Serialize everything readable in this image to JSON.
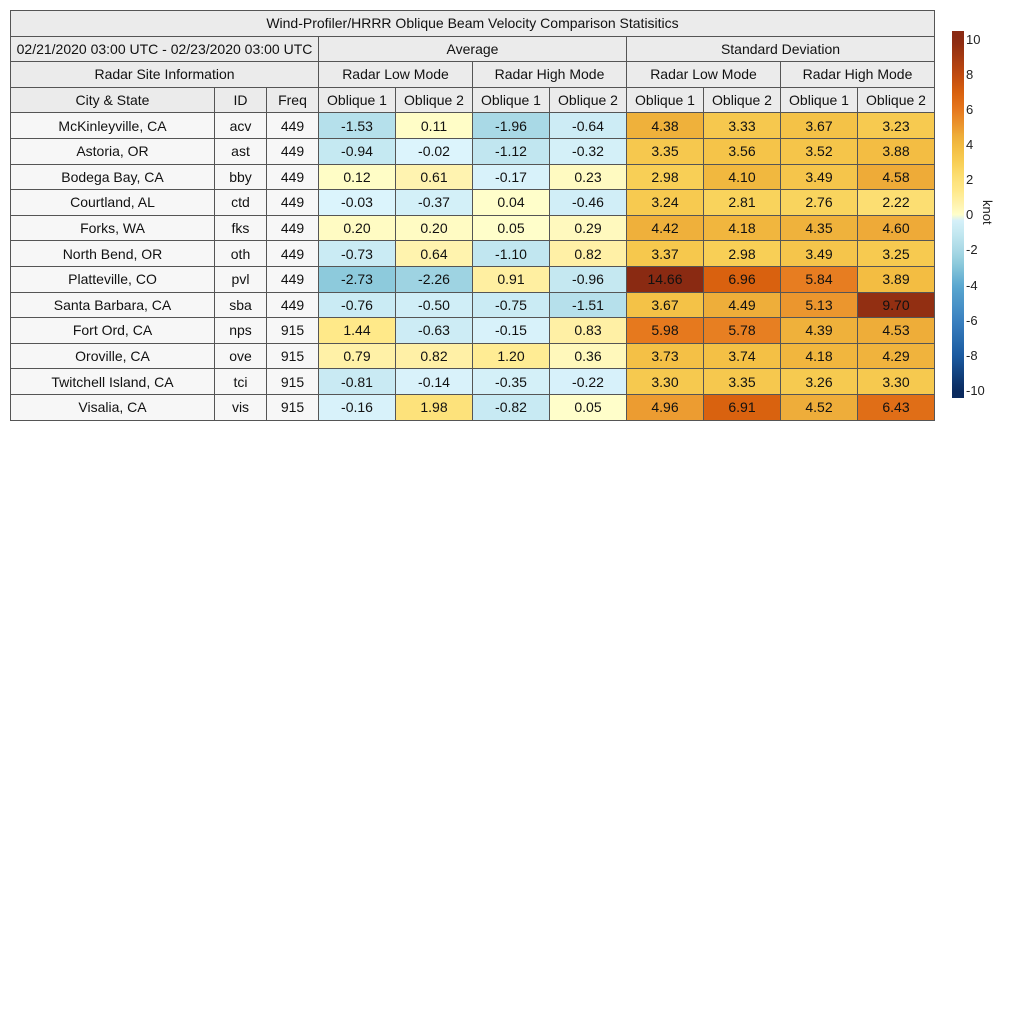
{
  "chart_data": {
    "type": "heatmap",
    "title": "Wind-Profiler/HRRR Oblique Beam Velocity Comparison Statisitics",
    "period": "02/21/2020 03:00 UTC - 02/23/2020 03:00 UTC",
    "group_headers": [
      "Average",
      "Standard Deviation"
    ],
    "site_info_header": "Radar Site Information",
    "mode_headers": [
      "Radar Low Mode",
      "Radar High Mode",
      "Radar Low Mode",
      "Radar High Mode"
    ],
    "column_headers": [
      "City & State",
      "ID",
      "Freq",
      "Oblique 1",
      "Oblique 2",
      "Oblique 1",
      "Oblique 2",
      "Oblique 1",
      "Oblique 2",
      "Oblique 1",
      "Oblique 2"
    ],
    "rows": [
      {
        "city": "McKinleyville, CA",
        "id": "acv",
        "freq": "449",
        "values": [
          "-1.53",
          "0.11",
          "-1.96",
          "-0.64",
          "4.38",
          "3.33",
          "3.67",
          "3.23"
        ]
      },
      {
        "city": "Astoria, OR",
        "id": "ast",
        "freq": "449",
        "values": [
          "-0.94",
          "-0.02",
          "-1.12",
          "-0.32",
          "3.35",
          "3.56",
          "3.52",
          "3.88"
        ]
      },
      {
        "city": "Bodega Bay, CA",
        "id": "bby",
        "freq": "449",
        "values": [
          "0.12",
          "0.61",
          "-0.17",
          "0.23",
          "2.98",
          "4.10",
          "3.49",
          "4.58"
        ]
      },
      {
        "city": "Courtland, AL",
        "id": "ctd",
        "freq": "449",
        "values": [
          "-0.03",
          "-0.37",
          "0.04",
          "-0.46",
          "3.24",
          "2.81",
          "2.76",
          "2.22"
        ]
      },
      {
        "city": "Forks, WA",
        "id": "fks",
        "freq": "449",
        "values": [
          "0.20",
          "0.20",
          "0.05",
          "0.29",
          "4.42",
          "4.18",
          "4.35",
          "4.60"
        ]
      },
      {
        "city": "North Bend, OR",
        "id": "oth",
        "freq": "449",
        "values": [
          "-0.73",
          "0.64",
          "-1.10",
          "0.82",
          "3.37",
          "2.98",
          "3.49",
          "3.25"
        ]
      },
      {
        "city": "Platteville, CO",
        "id": "pvl",
        "freq": "449",
        "values": [
          "-2.73",
          "-2.26",
          "0.91",
          "-0.96",
          "14.66",
          "6.96",
          "5.84",
          "3.89"
        ]
      },
      {
        "city": "Santa Barbara, CA",
        "id": "sba",
        "freq": "449",
        "values": [
          "-0.76",
          "-0.50",
          "-0.75",
          "-1.51",
          "3.67",
          "4.49",
          "5.13",
          "9.70"
        ]
      },
      {
        "city": "Fort Ord, CA",
        "id": "nps",
        "freq": "915",
        "values": [
          "1.44",
          "-0.63",
          "-0.15",
          "0.83",
          "5.98",
          "5.78",
          "4.39",
          "4.53"
        ]
      },
      {
        "city": "Oroville, CA",
        "id": "ove",
        "freq": "915",
        "values": [
          "0.79",
          "0.82",
          "1.20",
          "0.36",
          "3.73",
          "3.74",
          "4.18",
          "4.29"
        ]
      },
      {
        "city": "Twitchell Island, CA",
        "id": "tci",
        "freq": "915",
        "values": [
          "-0.81",
          "-0.14",
          "-0.35",
          "-0.22",
          "3.30",
          "3.35",
          "3.26",
          "3.30"
        ]
      },
      {
        "city": "Visalia, CA",
        "id": "vis",
        "freq": "915",
        "values": [
          "-0.16",
          "1.98",
          "-0.82",
          "0.05",
          "4.96",
          "6.91",
          "4.52",
          "6.43"
        ]
      }
    ],
    "colorbar": {
      "label": "knot",
      "range": [
        -10,
        10
      ],
      "ticks": [
        "10",
        "8",
        "6",
        "4",
        "2",
        "0",
        "-2",
        "-4",
        "-6",
        "-8",
        "-10"
      ],
      "colors": {
        "neg_max": "#0a2a5e",
        "zero_neg": "#dcf4fc",
        "zero_pos": "#ffffcc",
        "pos_max": "#8a2a12"
      }
    }
  }
}
